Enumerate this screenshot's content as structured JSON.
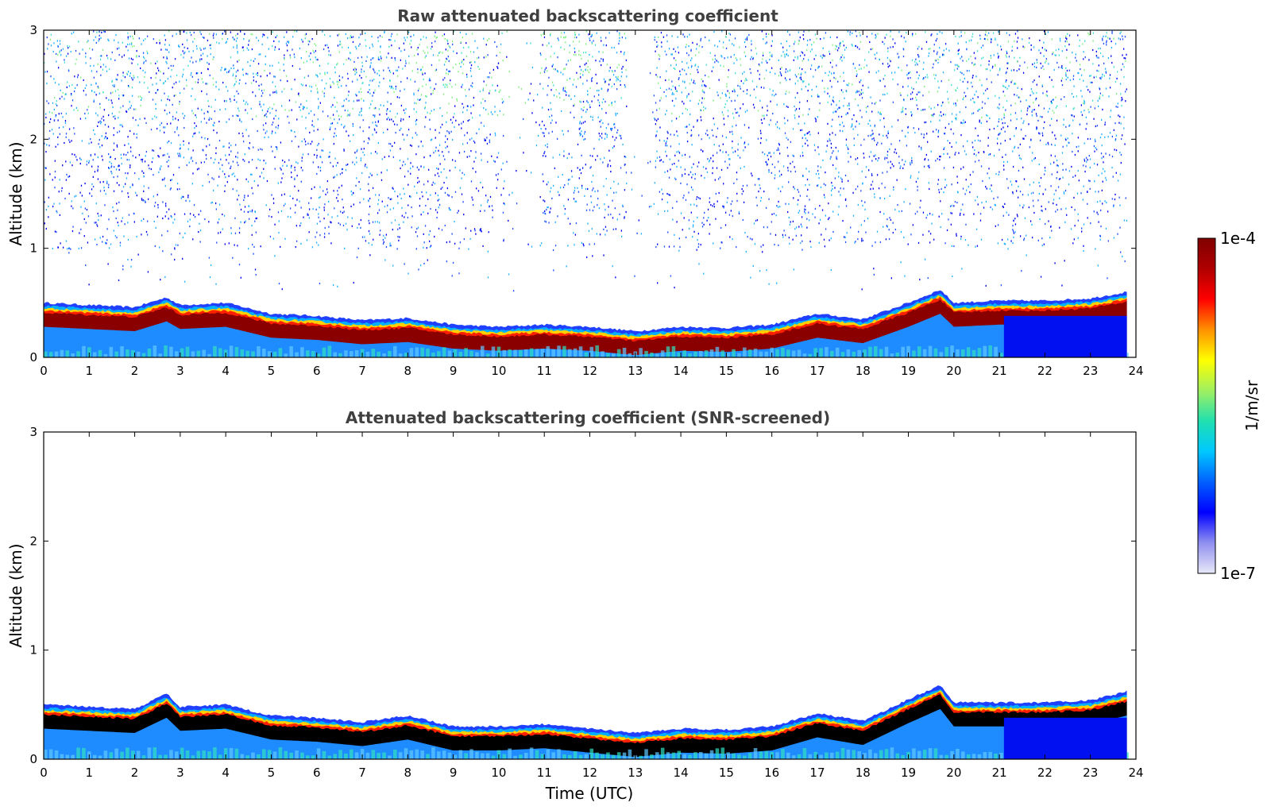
{
  "chart_data": [
    {
      "type": "heatmap",
      "title": "Raw attenuated backscattering coefficient",
      "xlabel": "",
      "ylabel": "Altitude (km)",
      "xlim": [
        0,
        24
      ],
      "ylim": [
        0,
        3
      ],
      "xticks": [
        "0",
        "1",
        "2",
        "3",
        "4",
        "5",
        "6",
        "7",
        "8",
        "9",
        "10",
        "11",
        "12",
        "13",
        "14",
        "15",
        "16",
        "17",
        "18",
        "19",
        "20",
        "21",
        "22",
        "23",
        "24"
      ],
      "yticks": [
        "0",
        "1",
        "2",
        "3"
      ],
      "layer_top_km": {
        "time_utc": [
          0,
          1,
          2,
          2.7,
          3,
          4,
          5,
          6,
          7,
          8,
          9,
          10,
          11,
          12,
          13,
          14,
          15,
          16,
          17,
          18,
          19,
          19.7,
          20,
          21,
          22,
          23,
          23.8
        ],
        "altitude": [
          0.5,
          0.48,
          0.46,
          0.55,
          0.48,
          0.5,
          0.4,
          0.38,
          0.34,
          0.36,
          0.3,
          0.28,
          0.3,
          0.28,
          0.24,
          0.28,
          0.27,
          0.3,
          0.4,
          0.35,
          0.5,
          0.62,
          0.5,
          0.52,
          0.52,
          0.54,
          0.6
        ]
      },
      "noise": "sparse speckle above 1 km; clear gap near 10.3 and 13 UTC"
    },
    {
      "type": "heatmap",
      "title": "Attenuated backscattering coefficient (SNR-screened)",
      "xlabel": "Time (UTC)",
      "ylabel": "Altitude (km)",
      "xlim": [
        0,
        24
      ],
      "ylim": [
        0,
        3
      ],
      "xticks": [
        "0",
        "1",
        "2",
        "3",
        "4",
        "5",
        "6",
        "7",
        "8",
        "9",
        "10",
        "11",
        "12",
        "13",
        "14",
        "15",
        "16",
        "17",
        "18",
        "19",
        "20",
        "21",
        "22",
        "23",
        "24"
      ],
      "yticks": [
        "0",
        "1",
        "2",
        "3"
      ],
      "layer_top_km": {
        "time_utc": [
          0,
          1,
          2,
          2.7,
          3,
          4,
          5,
          6,
          7,
          8,
          9,
          10,
          11,
          12,
          13,
          14,
          15,
          16,
          17,
          18,
          19,
          19.7,
          20,
          21,
          22,
          23,
          23.8
        ],
        "altitude": [
          0.5,
          0.48,
          0.46,
          0.6,
          0.48,
          0.5,
          0.4,
          0.38,
          0.34,
          0.4,
          0.3,
          0.3,
          0.32,
          0.28,
          0.24,
          0.28,
          0.27,
          0.3,
          0.42,
          0.35,
          0.55,
          0.68,
          0.52,
          0.52,
          0.52,
          0.54,
          0.62
        ]
      },
      "saturated_color": "#000000"
    }
  ],
  "colorbar": {
    "label": "1/m/sr",
    "max_label": "1e-4",
    "min_label": "1e-7",
    "min": 1e-07,
    "max": 0.0001,
    "scale": "log",
    "stops": [
      "#e8e8f8",
      "#9090f0",
      "#0000ff",
      "#0060ff",
      "#00c8ff",
      "#20e0b0",
      "#a0f060",
      "#ffff00",
      "#ff9000",
      "#ff0000",
      "#b00000",
      "#800000"
    ]
  }
}
